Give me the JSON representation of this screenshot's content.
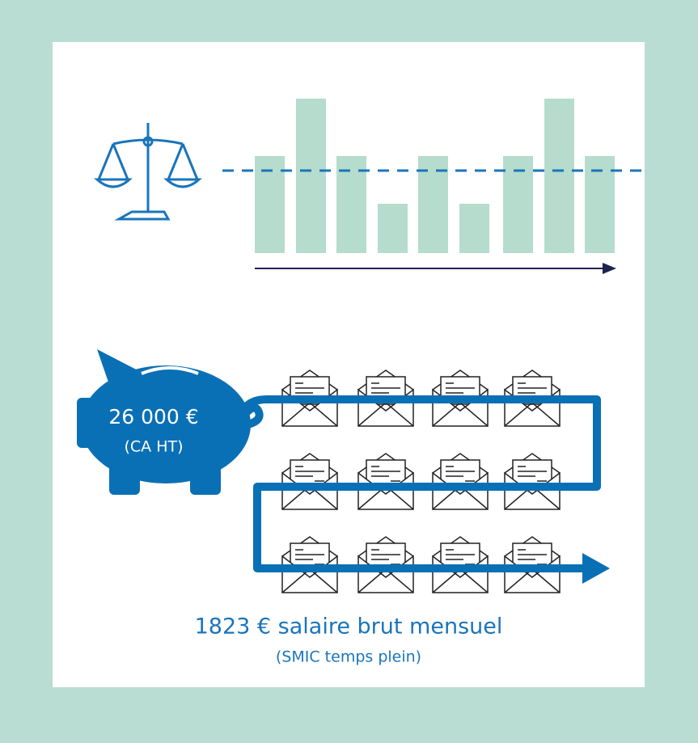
{
  "piggy_bank": {
    "amount": "26 000 €",
    "note": "(CA HT)"
  },
  "salary": {
    "text": "1823 € salaire brut mensuel",
    "note": "(SMIC temps plein)"
  }
}
